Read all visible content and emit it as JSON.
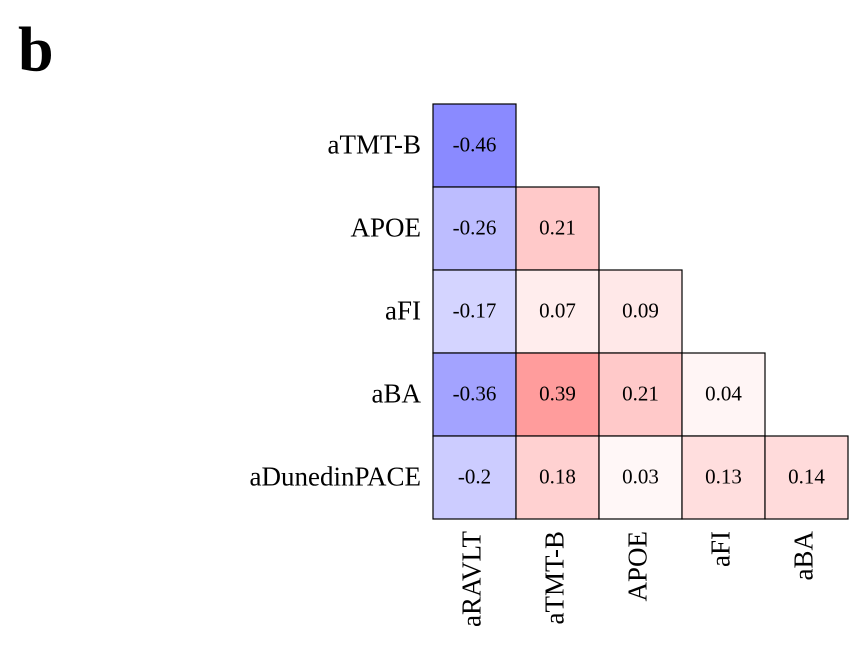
{
  "chart_data": {
    "type": "heatmap",
    "panel_label": "b",
    "rows": [
      "aTMT-B",
      "APOE",
      "aFI",
      "aBA",
      "aDunedinPACE"
    ],
    "columns": [
      "aRAVLT",
      "aTMT-B",
      "APOE",
      "aFI",
      "aBA"
    ],
    "values": [
      [
        -0.46,
        null,
        null,
        null,
        null
      ],
      [
        -0.26,
        0.21,
        null,
        null,
        null
      ],
      [
        -0.17,
        0.07,
        0.09,
        null,
        null
      ],
      [
        -0.36,
        0.39,
        0.21,
        0.04,
        null
      ],
      [
        -0.2,
        0.18,
        0.03,
        0.13,
        0.14
      ]
    ],
    "color_range": [
      -1,
      1
    ],
    "colors": {
      "negative": "#0000ff",
      "zero": "#ffffff",
      "positive": "#ff0000"
    }
  }
}
